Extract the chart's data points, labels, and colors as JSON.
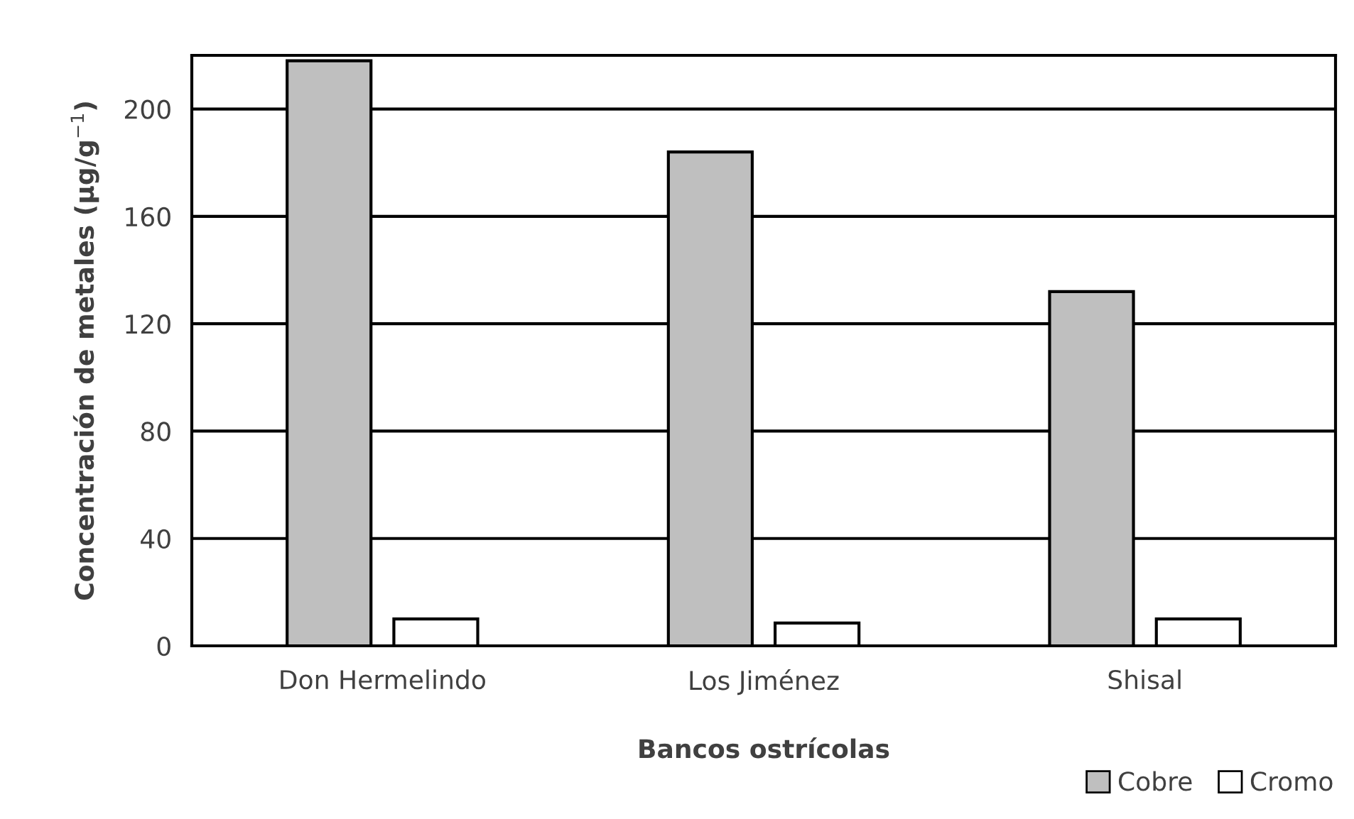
{
  "chart_data": {
    "type": "bar",
    "xlabel": "Bancos ostrícolas",
    "ylabel": "Concentración de metales (µg/g$^{−1}$)",
    "categories": [
      "Don Hermelindo",
      "Los Jiménez",
      "Shisal"
    ],
    "series": [
      {
        "name": "Cobre",
        "color": "#bfbfbf",
        "values": [
          218,
          184,
          132
        ]
      },
      {
        "name": "Cromo",
        "color": "#ffffff",
        "values": [
          10,
          8.5,
          10
        ]
      }
    ],
    "ylim": [
      0,
      220
    ],
    "yticks": [
      0,
      40,
      80,
      120,
      160,
      200
    ],
    "grid": "y",
    "legend": "bottom right"
  }
}
